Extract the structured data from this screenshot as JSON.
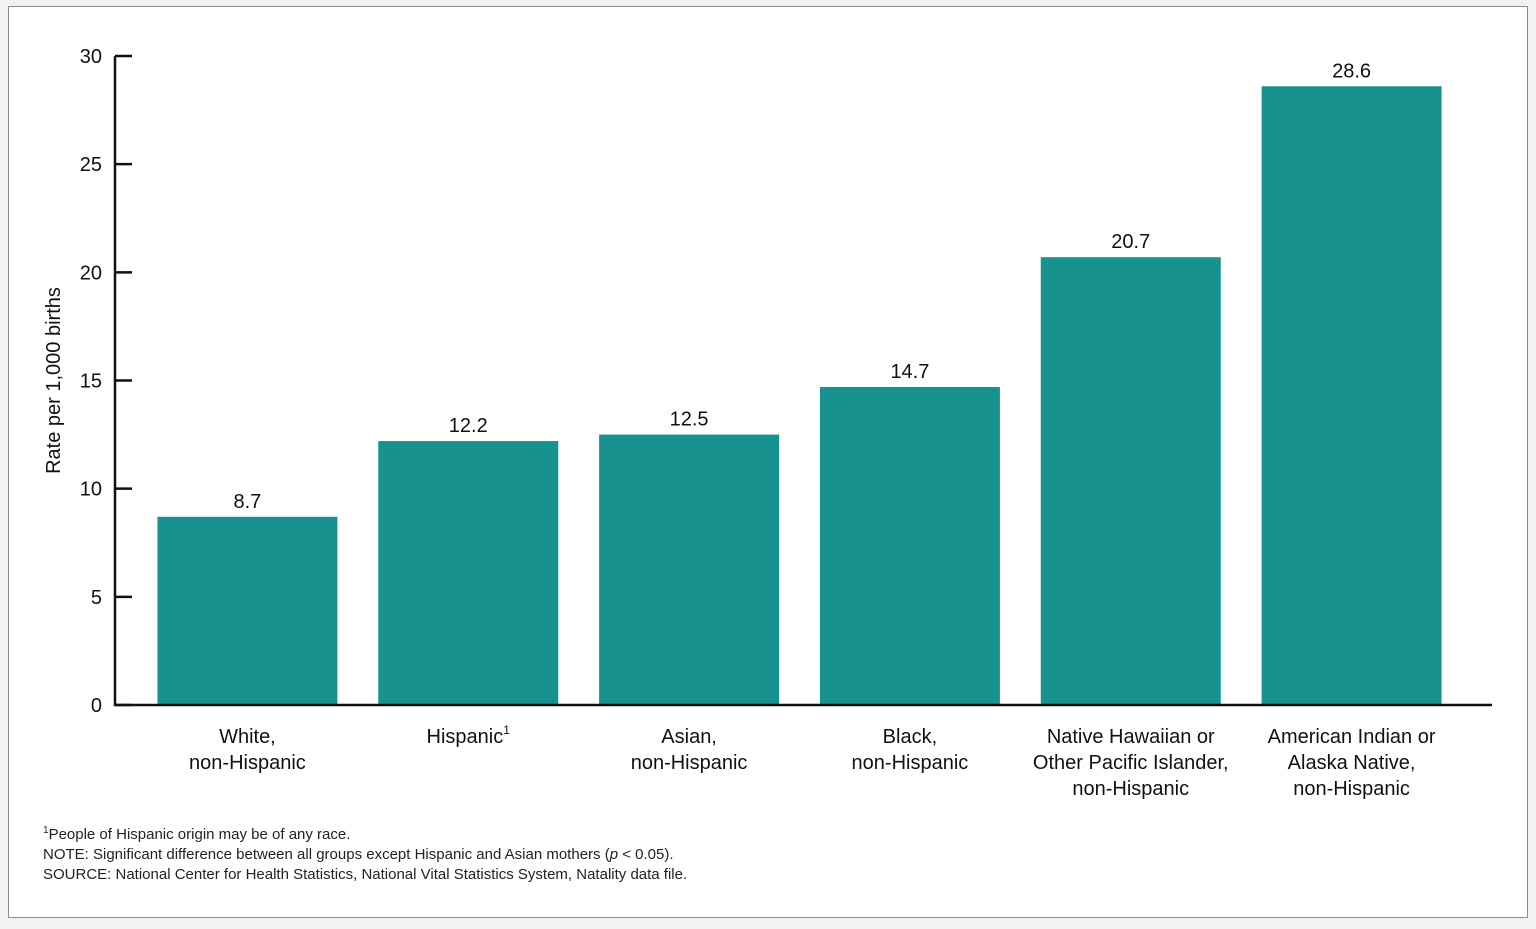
{
  "chart_data": {
    "type": "bar",
    "title": "",
    "ylabel": "Rate per 1,000 births",
    "xlabel": "",
    "ylim": [
      0,
      30
    ],
    "yticks": [
      0,
      5,
      10,
      15,
      20,
      25,
      30
    ],
    "grid": false,
    "bar_color": "#17928e",
    "categories": [
      {
        "lines": [
          "White,",
          "non-Hispanic"
        ],
        "sup": ""
      },
      {
        "lines": [
          "Hispanic"
        ],
        "sup": "1"
      },
      {
        "lines": [
          "Asian,",
          "non-Hispanic"
        ],
        "sup": ""
      },
      {
        "lines": [
          "Black,",
          "non-Hispanic"
        ],
        "sup": ""
      },
      {
        "lines": [
          "Native Hawaiian or",
          "Other Pacific Islander,",
          "non-Hispanic"
        ],
        "sup": ""
      },
      {
        "lines": [
          "American Indian or",
          "Alaska Native,",
          "non-Hispanic"
        ],
        "sup": ""
      }
    ],
    "values": [
      8.7,
      12.2,
      12.5,
      14.7,
      20.7,
      28.6
    ],
    "value_labels": [
      "8.7",
      "12.2",
      "12.5",
      "14.7",
      "20.7",
      "28.6"
    ]
  },
  "footnotes": {
    "footnote_1_mark": "1",
    "footnote_1_text": "People of Hispanic origin may be of any race.",
    "note": "NOTE: Significant difference between all groups except Hispanic and Asian mothers (",
    "note_p": "p",
    "note_end": " < 0.05).",
    "source": "SOURCE: National Center for Health Statistics, National Vital Statistics System, Natality data file."
  }
}
